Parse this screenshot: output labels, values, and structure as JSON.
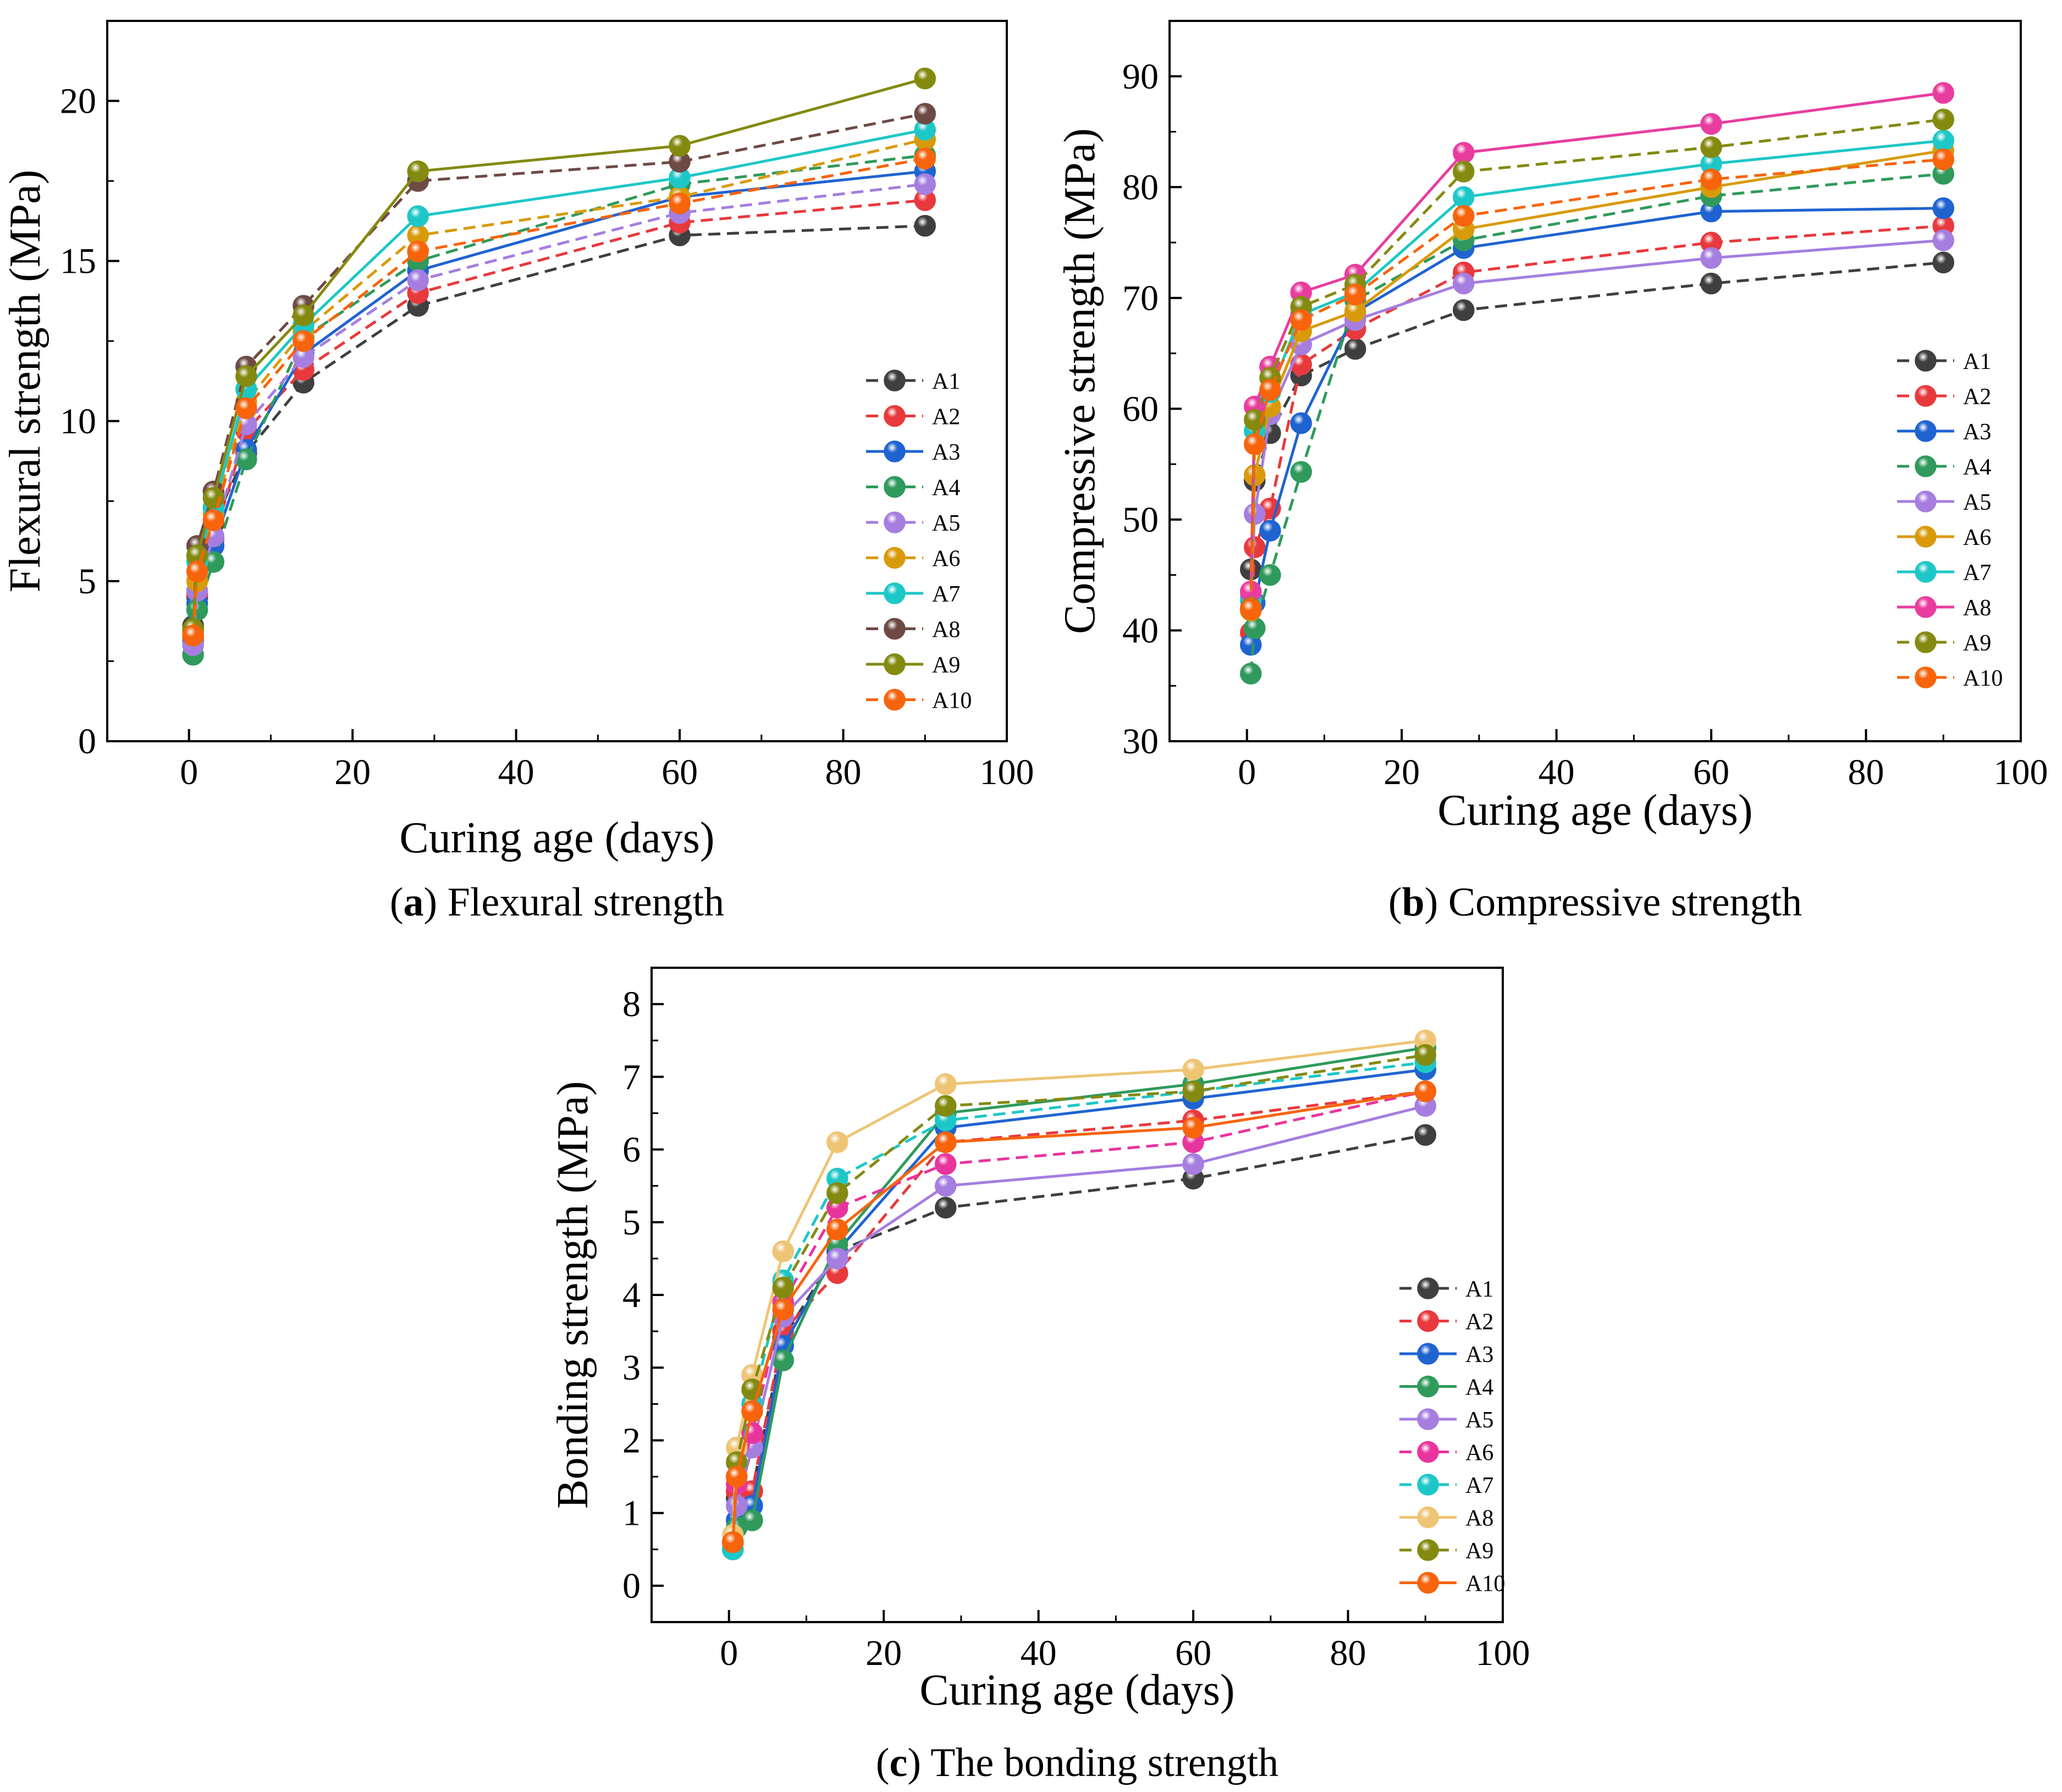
{
  "colors": {
    "A1": "#3f3f3f",
    "A2": "#e8393d",
    "A3": "#1f63d1",
    "A4": "#2f9a5c",
    "A5": "#a57ee0",
    "A6": "#d99a0a",
    "A7": "#1ec7c7",
    "A8": "#e83d9f",
    "A9": "#848a10",
    "A10": "#f7640c",
    "A8c": "#eec575",
    "A6c": "#e8359e",
    "A8a": "#6e4a45"
  },
  "chart_data": [
    {
      "id": "a",
      "type": "line",
      "title": "Flexural strength",
      "caption_letter": "a",
      "caption_open": "(",
      "caption_close": ")",
      "caption_text": " Flexural strength",
      "xlabel": "Curing age (days)",
      "ylabel": "Flexural strength (MPa)",
      "xlim": [
        -10,
        100
      ],
      "ylim": [
        0,
        22.5
      ],
      "xticks": [
        0,
        20,
        40,
        60,
        80,
        100
      ],
      "yticks": [
        0,
        5,
        10,
        15,
        20
      ],
      "x": [
        0.5,
        1,
        3,
        7,
        14,
        28,
        60,
        90
      ],
      "legend_position": "center-right",
      "series": [
        {
          "name": "A1",
          "color": "#3f3f3f",
          "dash": true,
          "values": [
            3.6,
            4.5,
            6.8,
            9.0,
            11.2,
            13.6,
            15.8,
            16.1
          ]
        },
        {
          "name": "A2",
          "color": "#e8393d",
          "dash": true,
          "values": [
            3.2,
            4.6,
            6.3,
            9.7,
            11.6,
            14.0,
            16.2,
            16.9
          ]
        },
        {
          "name": "A3",
          "color": "#1f63d1",
          "dash": false,
          "values": [
            3.1,
            4.3,
            6.1,
            9.1,
            12.1,
            14.7,
            17.0,
            17.8
          ]
        },
        {
          "name": "A4",
          "color": "#2f9a5c",
          "dash": true,
          "values": [
            2.7,
            4.1,
            5.6,
            8.8,
            12.6,
            15.0,
            17.4,
            18.3
          ]
        },
        {
          "name": "A5",
          "color": "#a57ee0",
          "dash": true,
          "values": [
            3.0,
            4.7,
            6.4,
            9.9,
            12.0,
            14.4,
            16.5,
            17.4
          ]
        },
        {
          "name": "A6",
          "color": "#d99a0a",
          "dash": true,
          "values": [
            3.4,
            5.0,
            7.1,
            10.6,
            12.8,
            15.8,
            17.0,
            18.8
          ]
        },
        {
          "name": "A7",
          "color": "#1ec7c7",
          "dash": false,
          "values": [
            3.3,
            5.6,
            7.3,
            11.0,
            13.0,
            16.4,
            17.6,
            19.1
          ]
        },
        {
          "name": "A8",
          "color": "#6e4a45",
          "dash": true,
          "values": [
            3.5,
            6.1,
            7.8,
            11.7,
            13.6,
            17.5,
            18.1,
            19.6
          ]
        },
        {
          "name": "A9",
          "color": "#848a10",
          "dash": false,
          "values": [
            3.5,
            5.8,
            7.6,
            11.4,
            13.3,
            17.8,
            18.6,
            20.7
          ]
        },
        {
          "name": "A10",
          "color": "#f7640c",
          "dash": true,
          "values": [
            3.3,
            5.3,
            6.9,
            10.4,
            12.5,
            15.3,
            16.8,
            18.2
          ]
        }
      ]
    },
    {
      "id": "b",
      "type": "line",
      "title": "Compressive strength",
      "caption_letter": "b",
      "caption_open": "(",
      "caption_close": ")",
      "caption_text": " Compressive strength",
      "xlabel": "Curing age (days)",
      "ylabel": "Compressive strength (MPa)",
      "xlim": [
        -10,
        100
      ],
      "ylim": [
        30,
        95
      ],
      "xticks": [
        0,
        20,
        40,
        60,
        80,
        100
      ],
      "yticks": [
        30,
        40,
        50,
        60,
        70,
        80,
        90
      ],
      "x": [
        0.5,
        1,
        3,
        7,
        14,
        28,
        60,
        90
      ],
      "legend_position": "right",
      "series": [
        {
          "name": "A1",
          "color": "#3f3f3f",
          "dash": true,
          "values": [
            45.5,
            53.5,
            57.8,
            63.0,
            65.4,
            68.9,
            71.3,
            73.2
          ]
        },
        {
          "name": "A2",
          "color": "#e8393d",
          "dash": true,
          "values": [
            39.8,
            47.5,
            51.0,
            64.0,
            67.2,
            72.3,
            75.0,
            76.5
          ]
        },
        {
          "name": "A3",
          "color": "#1f63d1",
          "dash": false,
          "values": [
            38.7,
            42.5,
            49.0,
            58.7,
            68.7,
            74.5,
            77.8,
            78.1
          ]
        },
        {
          "name": "A4",
          "color": "#2f9a5c",
          "dash": true,
          "values": [
            36.1,
            40.2,
            45.0,
            54.3,
            69.8,
            75.2,
            79.2,
            81.2
          ]
        },
        {
          "name": "A5",
          "color": "#a57ee0",
          "dash": false,
          "values": [
            43.0,
            50.5,
            59.5,
            65.8,
            68.0,
            71.3,
            73.6,
            75.2
          ]
        },
        {
          "name": "A6",
          "color": "#d99a0a",
          "dash": false,
          "values": [
            41.8,
            54.0,
            60.2,
            67.0,
            68.8,
            76.2,
            80.0,
            83.3
          ]
        },
        {
          "name": "A7",
          "color": "#1ec7c7",
          "dash": false,
          "values": [
            42.7,
            58.0,
            61.5,
            68.5,
            70.5,
            79.1,
            82.1,
            84.2
          ]
        },
        {
          "name": "A8",
          "color": "#e83d9f",
          "dash": false,
          "values": [
            43.5,
            60.2,
            63.8,
            70.5,
            72.1,
            83.1,
            85.7,
            88.5
          ]
        },
        {
          "name": "A9",
          "color": "#848a10",
          "dash": true,
          "values": [
            42.0,
            59.0,
            62.8,
            69.2,
            71.2,
            81.4,
            83.6,
            86.1
          ]
        },
        {
          "name": "A10",
          "color": "#f7640c",
          "dash": true,
          "values": [
            41.9,
            56.8,
            61.7,
            68.0,
            70.3,
            77.4,
            80.7,
            82.5
          ]
        }
      ]
    },
    {
      "id": "c",
      "type": "line",
      "title": "The bonding strength",
      "caption_letter": "c",
      "caption_open": "(",
      "caption_close": ")",
      "caption_text": " The bonding strength",
      "xlabel": "Curing age (days)",
      "ylabel": "Bonding strength (MPa)",
      "xlim": [
        -10,
        100
      ],
      "ylim": [
        -0.5,
        8.5
      ],
      "xticks": [
        0,
        20,
        40,
        60,
        80,
        100
      ],
      "yticks": [
        0,
        1,
        2,
        3,
        4,
        5,
        6,
        7,
        8
      ],
      "x": [
        0.5,
        1,
        3,
        7,
        14,
        28,
        60,
        90
      ],
      "legend_position": "right",
      "series": [
        {
          "name": "A1",
          "color": "#3f3f3f",
          "dash": true,
          "values": [
            0.6,
            1.2,
            1.3,
            3.4,
            4.6,
            5.2,
            5.6,
            6.2
          ]
        },
        {
          "name": "A2",
          "color": "#e8393d",
          "dash": true,
          "values": [
            0.6,
            1.3,
            1.3,
            3.5,
            4.3,
            6.1,
            6.4,
            6.8
          ]
        },
        {
          "name": "A3",
          "color": "#1f63d1",
          "dash": false,
          "values": [
            0.5,
            0.9,
            1.1,
            3.3,
            4.6,
            6.3,
            6.7,
            7.1
          ]
        },
        {
          "name": "A4",
          "color": "#2f9a5c",
          "dash": false,
          "values": [
            0.5,
            0.8,
            0.9,
            3.1,
            4.7,
            6.5,
            6.9,
            7.4
          ]
        },
        {
          "name": "A5",
          "color": "#a57ee0",
          "dash": false,
          "values": [
            0.6,
            1.1,
            1.9,
            3.7,
            4.5,
            5.5,
            5.8,
            6.6
          ]
        },
        {
          "name": "A6",
          "color": "#e8359e",
          "dash": true,
          "values": [
            0.6,
            1.4,
            2.1,
            3.9,
            5.2,
            5.8,
            6.1,
            6.8
          ]
        },
        {
          "name": "A7",
          "color": "#1ec7c7",
          "dash": true,
          "values": [
            0.5,
            1.5,
            2.5,
            4.2,
            5.6,
            6.4,
            6.8,
            7.2
          ]
        },
        {
          "name": "A8",
          "color": "#eec575",
          "dash": false,
          "values": [
            0.7,
            1.9,
            2.9,
            4.6,
            6.1,
            6.9,
            7.1,
            7.5
          ]
        },
        {
          "name": "A9",
          "color": "#848a10",
          "dash": true,
          "values": [
            0.6,
            1.7,
            2.7,
            4.1,
            5.4,
            6.6,
            6.8,
            7.3
          ]
        },
        {
          "name": "A10",
          "color": "#f7640c",
          "dash": false,
          "values": [
            0.6,
            1.5,
            2.4,
            3.8,
            4.9,
            6.1,
            6.3,
            6.8
          ]
        }
      ]
    }
  ]
}
